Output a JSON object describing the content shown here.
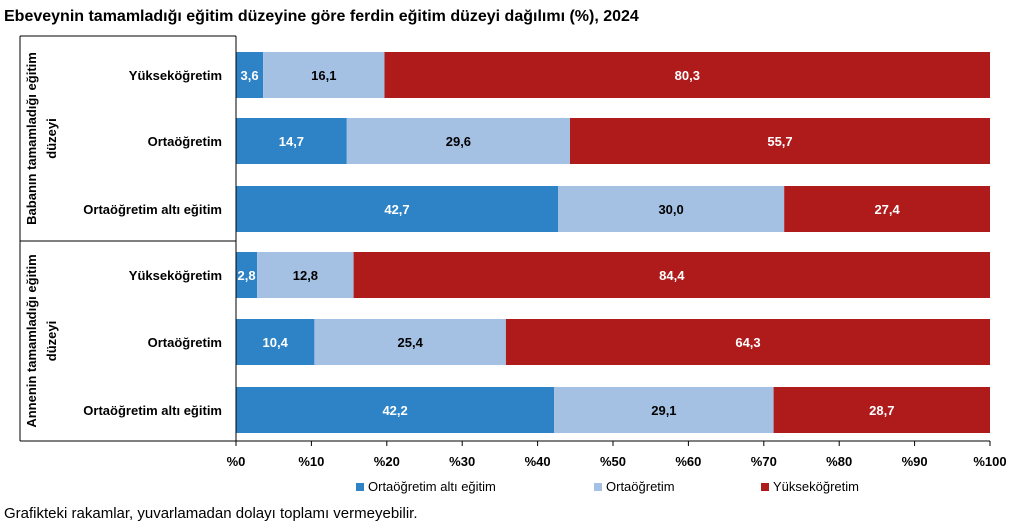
{
  "title": "Ebeveynin tamamladığı eğitim düzeyine göre ferdin eğitim düzeyi dağılımı (%), 2024",
  "footnote": "Grafikteki rakamlar, yuvarlamadan dolayı toplamı vermeyebilir.",
  "colors": {
    "series": [
      "#2e83c6",
      "#a4c1e4",
      "#af1a1b"
    ],
    "label_text": [
      "#ffffff",
      "#000000",
      "#ffffff"
    ]
  },
  "chart_data": {
    "type": "bar",
    "orientation": "horizontal",
    "stacked": true,
    "title": "Ebeveynin tamamladığı eğitim düzeyine göre ferdin eğitim düzeyi dağılımı (%), 2024",
    "groups": [
      {
        "label_lines": [
          "Babanın tamamladığı eğitim",
          "düzeyi"
        ],
        "categories": [
          "Yükseköğretim",
          "Ortaöğretim",
          "Ortaöğretim altı eğitim"
        ]
      },
      {
        "label_lines": [
          "Annenin tamamladığı eğitim",
          "düzeyi"
        ],
        "categories": [
          "Yükseköğretim",
          "Ortaöğretim",
          "Ortaöğretim altı eğitim"
        ]
      }
    ],
    "series": [
      {
        "name": "Ortaöğretim altı eğitim",
        "values": [
          3.6,
          14.7,
          42.7,
          2.8,
          10.4,
          42.2
        ],
        "labels": [
          "3,6",
          "14,7",
          "42,7",
          "2,8",
          "10,4",
          "42,2"
        ]
      },
      {
        "name": "Ortaöğretim",
        "values": [
          16.1,
          29.6,
          30.0,
          12.8,
          25.4,
          29.1
        ],
        "labels": [
          "16,1",
          "29,6",
          "30,0",
          "12,8",
          "25,4",
          "29,1"
        ]
      },
      {
        "name": "Yükseköğretim",
        "values": [
          80.3,
          55.7,
          27.4,
          84.4,
          64.3,
          28.7
        ],
        "labels": [
          "80,3",
          "55,7",
          "27,4",
          "84,4",
          "64,3",
          "28,7"
        ]
      }
    ],
    "xlim": [
      0,
      100
    ],
    "xticks": [
      0,
      10,
      20,
      30,
      40,
      50,
      60,
      70,
      80,
      90,
      100
    ],
    "xtick_labels": [
      "%0",
      "%10",
      "%20",
      "%30",
      "%40",
      "%50",
      "%60",
      "%70",
      "%80",
      "%90",
      "%100"
    ],
    "grid": false,
    "legend_position": "bottom"
  }
}
